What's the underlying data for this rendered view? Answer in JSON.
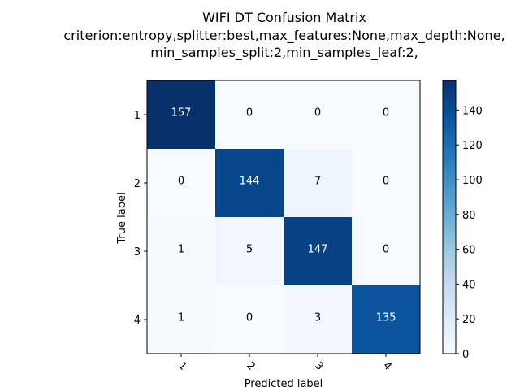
{
  "chart_data": {
    "type": "heatmap",
    "title_lines": [
      "WIFI DT Confusion Matrix",
      "criterion:entropy,splitter:best,max_features:None,max_depth:None,",
      "min_samples_split:2,min_samples_leaf:2,"
    ],
    "xlabel": "Predicted label",
    "ylabel": "True label",
    "x_categories": [
      "1",
      "2",
      "3",
      "4"
    ],
    "y_categories": [
      "1",
      "2",
      "3",
      "4"
    ],
    "matrix": [
      [
        157,
        0,
        0,
        0
      ],
      [
        0,
        144,
        7,
        0
      ],
      [
        1,
        5,
        147,
        0
      ],
      [
        1,
        0,
        3,
        135
      ]
    ],
    "colormap": "Blues",
    "colorbar": {
      "range": [
        0,
        157
      ],
      "ticks": [
        "0",
        "20",
        "40",
        "60",
        "80",
        "100",
        "120",
        "140"
      ]
    }
  }
}
